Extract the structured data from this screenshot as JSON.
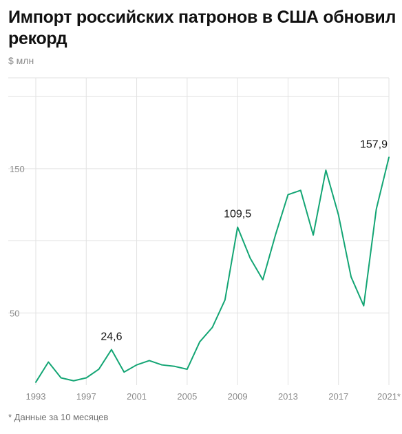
{
  "chart_data": {
    "type": "line",
    "title": "Импорт российских патронов в США обновил рекорд",
    "unit": "$ млн",
    "footnote": "* Данные за 10 месяцев",
    "x": [
      1993,
      1994,
      1995,
      1996,
      1997,
      1998,
      1999,
      2000,
      2001,
      2002,
      2003,
      2004,
      2005,
      2006,
      2007,
      2008,
      2009,
      2010,
      2011,
      2012,
      2013,
      2014,
      2015,
      2016,
      2017,
      2018,
      2019,
      2020,
      2021
    ],
    "series": [
      {
        "values": [
          2,
          16,
          5,
          3,
          5,
          11,
          24.6,
          9,
          14,
          17,
          14,
          13,
          11,
          30,
          40,
          59,
          109.5,
          88,
          73,
          104,
          132,
          135,
          104,
          149,
          118,
          75,
          55,
          122,
          157.9
        ],
        "color": "#13a574"
      }
    ],
    "x_ticks": [
      {
        "value": 1993,
        "label": "1993"
      },
      {
        "value": 1997,
        "label": "1997"
      },
      {
        "value": 2001,
        "label": "2001"
      },
      {
        "value": 2005,
        "label": "2005"
      },
      {
        "value": 2009,
        "label": "2009"
      },
      {
        "value": 2013,
        "label": "2013"
      },
      {
        "value": 2017,
        "label": "2017"
      },
      {
        "value": 2021,
        "label": "2021*"
      }
    ],
    "y_ticks": [
      {
        "value": 50,
        "label": "50"
      },
      {
        "value": 150,
        "label": "150"
      }
    ],
    "y_grid": [
      50,
      100,
      150,
      200
    ],
    "data_labels": [
      {
        "x": 1999,
        "y": 24.6,
        "label": "24,6"
      },
      {
        "x": 2009,
        "y": 109.5,
        "label": "109,5"
      },
      {
        "x": 2021,
        "y": 157.9,
        "label": "157,9"
      }
    ],
    "xlim": [
      1993,
      2021
    ],
    "ylim": [
      0,
      213
    ],
    "grid": true
  }
}
